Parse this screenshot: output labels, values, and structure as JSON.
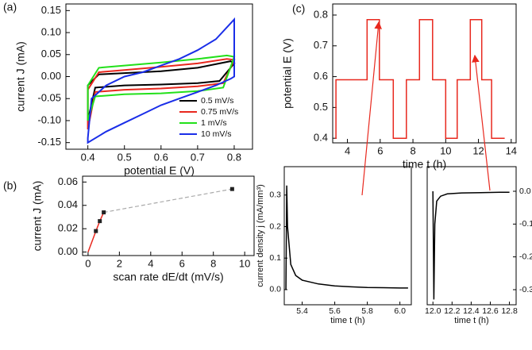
{
  "chart_data": [
    {
      "type": "line",
      "label": "(a)",
      "xlabel": "potential E (V)",
      "ylabel": "current J (mA)",
      "xlim": [
        0.34,
        0.85
      ],
      "xticks": [
        0.4,
        0.5,
        0.6,
        0.7,
        0.8
      ],
      "ylim": [
        -0.165,
        0.165
      ],
      "yticks": [
        0.15,
        {
          "value": 0.1,
          "label": "0.10"
        },
        0.05,
        {
          "value": 0,
          "label": "0.00"
        },
        -0.05,
        {
          "value": -0.1,
          "label": "-0.10"
        },
        -0.15
      ],
      "legend": "lower right",
      "closed": true,
      "series": [
        {
          "name": "0.5 mV/s",
          "color": "#000000",
          "x": [
            0.4,
            0.42,
            0.5,
            0.6,
            0.7,
            0.76,
            0.8,
            0.79,
            0.7,
            0.6,
            0.5,
            0.43,
            0.4
          ],
          "values": [
            -0.1,
            -0.025,
            -0.02,
            -0.018,
            -0.015,
            -0.01,
            0.03,
            0.035,
            0.02,
            0.012,
            0.008,
            0.005,
            -0.02
          ]
        },
        {
          "name": "0.75 mV/s",
          "color": "#e8281e",
          "x": [
            0.4,
            0.42,
            0.5,
            0.6,
            0.7,
            0.77,
            0.8,
            0.78,
            0.7,
            0.6,
            0.5,
            0.43,
            0.4
          ],
          "values": [
            -0.12,
            -0.035,
            -0.03,
            -0.027,
            -0.022,
            -0.015,
            0.038,
            0.04,
            0.03,
            0.022,
            0.015,
            0.01,
            -0.03
          ]
        },
        {
          "name": "1 mV/s",
          "color": "#22e01a",
          "x": [
            0.4,
            0.42,
            0.5,
            0.6,
            0.7,
            0.77,
            0.8,
            0.78,
            0.7,
            0.6,
            0.5,
            0.43,
            0.4
          ],
          "values": [
            -0.1,
            -0.045,
            -0.04,
            -0.038,
            -0.033,
            -0.025,
            0.045,
            0.048,
            0.04,
            0.032,
            0.025,
            0.02,
            -0.02
          ]
        },
        {
          "name": "10 mV/s",
          "color": "#1a2ee8",
          "x": [
            0.4,
            0.41,
            0.45,
            0.5,
            0.55,
            0.6,
            0.65,
            0.7,
            0.75,
            0.8,
            0.8,
            0.79,
            0.75,
            0.7,
            0.65,
            0.6,
            0.55,
            0.5,
            0.45,
            0.4
          ],
          "values": [
            -0.14,
            -0.05,
            -0.02,
            0.0,
            0.01,
            0.025,
            0.04,
            0.06,
            0.085,
            0.13,
            0.0,
            -0.005,
            -0.02,
            -0.035,
            -0.05,
            -0.065,
            -0.085,
            -0.105,
            -0.125,
            -0.15
          ]
        }
      ]
    },
    {
      "type": "scatter",
      "label": "(b)",
      "xlabel": "scan rate dE/dt (mV/s)",
      "ylabel": "current J (mA)",
      "xlim": [
        -0.35,
        10.6
      ],
      "xticks": [
        0,
        2,
        4,
        6,
        8,
        10
      ],
      "ylim": [
        -0.003,
        0.065
      ],
      "yticks": [
        {
          "value": 0,
          "label": "0.00"
        },
        {
          "value": 0.02,
          "label": "0.02"
        },
        {
          "value": 0.04,
          "label": "0.04"
        },
        {
          "value": 0.06,
          "label": "0.06"
        }
      ],
      "link_color": "#aaaaaa",
      "series": [
        {
          "color": "#222222",
          "marker": "square",
          "x": [
            0.5,
            0.75,
            1,
            9.2
          ],
          "values": [
            0.018,
            0.0265,
            0.034,
            0.054
          ]
        },
        {
          "color": "#e8281e",
          "style": "line",
          "x": [
            0,
            0.5,
            0.75,
            1
          ],
          "values": [
            0,
            0.018,
            0.0265,
            0.034
          ]
        }
      ]
    },
    {
      "type": "line",
      "label": "(c)",
      "xlabel": "time t (h)",
      "ylabel": "potential E (V)",
      "xlim": [
        3.1,
        14.3
      ],
      "xticks": [
        4,
        6,
        8,
        10,
        12,
        14
      ],
      "ylim": [
        0.385,
        0.836
      ],
      "yticks": [
        0.4,
        0.5,
        0.6,
        0.7,
        0.8
      ],
      "series": [
        {
          "color": "#e8281e",
          "x": [
            3.25,
            3.3,
            3.3,
            5.2,
            5.2,
            5.95,
            5.95,
            6.8,
            6.8,
            7.6,
            7.6,
            8.4,
            8.4,
            9.2,
            9.2,
            10.0,
            10.0,
            10.7,
            10.7,
            11.5,
            11.5,
            12.2,
            12.2,
            12.8,
            12.8,
            13.6
          ],
          "values": [
            0.4,
            0.4,
            0.59,
            0.59,
            0.785,
            0.785,
            0.59,
            0.59,
            0.4,
            0.4,
            0.59,
            0.59,
            0.785,
            0.785,
            0.59,
            0.59,
            0.4,
            0.4,
            0.59,
            0.59,
            0.785,
            0.785,
            0.59,
            0.59,
            0.4,
            0.4
          ]
        }
      ]
    },
    {
      "type": "line",
      "xlabel": "time t (h)",
      "ylabel": "current density j (mA/mm³)",
      "xlim": [
        5.29,
        6.07
      ],
      "xticks": [
        5.4,
        5.6,
        5.8,
        {
          "value": 6,
          "label": "6.0"
        }
      ],
      "ylim": [
        -0.048,
        0.39
      ],
      "yticks": [
        {
          "value": 0,
          "label": "0.0"
        },
        0.1,
        0.2,
        0.3
      ],
      "series": [
        {
          "color": "#000000",
          "x": [
            5.3,
            5.305,
            5.31,
            5.33,
            5.36,
            5.4,
            5.5,
            5.6,
            5.7,
            5.8,
            5.9,
            6.0,
            6.05
          ],
          "values": [
            0.0,
            0.33,
            0.2,
            0.08,
            0.045,
            0.03,
            0.018,
            0.012,
            0.009,
            0.007,
            0.006,
            0.005,
            0.005
          ]
        }
      ]
    },
    {
      "type": "line",
      "xlabel": "time t (h)",
      "ylabel": "current density j (mA/mm³)",
      "yaxis": "right",
      "xlim": [
        11.94,
        12.87
      ],
      "xticks": [
        {
          "value": 12,
          "label": "12.0"
        },
        12.2,
        12.4,
        12.6,
        12.8
      ],
      "ylim": [
        -0.346,
        0.075
      ],
      "yticks": [
        {
          "value": 0,
          "label": "0.0"
        },
        -0.1,
        -0.2,
        -0.3
      ],
      "series": [
        {
          "color": "#000000",
          "x": [
            12.0,
            12.01,
            12.02,
            12.04,
            12.08,
            12.15,
            12.3,
            12.5,
            12.7,
            12.8
          ],
          "values": [
            0,
            -0.33,
            -0.1,
            -0.03,
            -0.015,
            -0.008,
            -0.005,
            -0.004,
            -0.003,
            -0.003
          ]
        }
      ]
    }
  ]
}
